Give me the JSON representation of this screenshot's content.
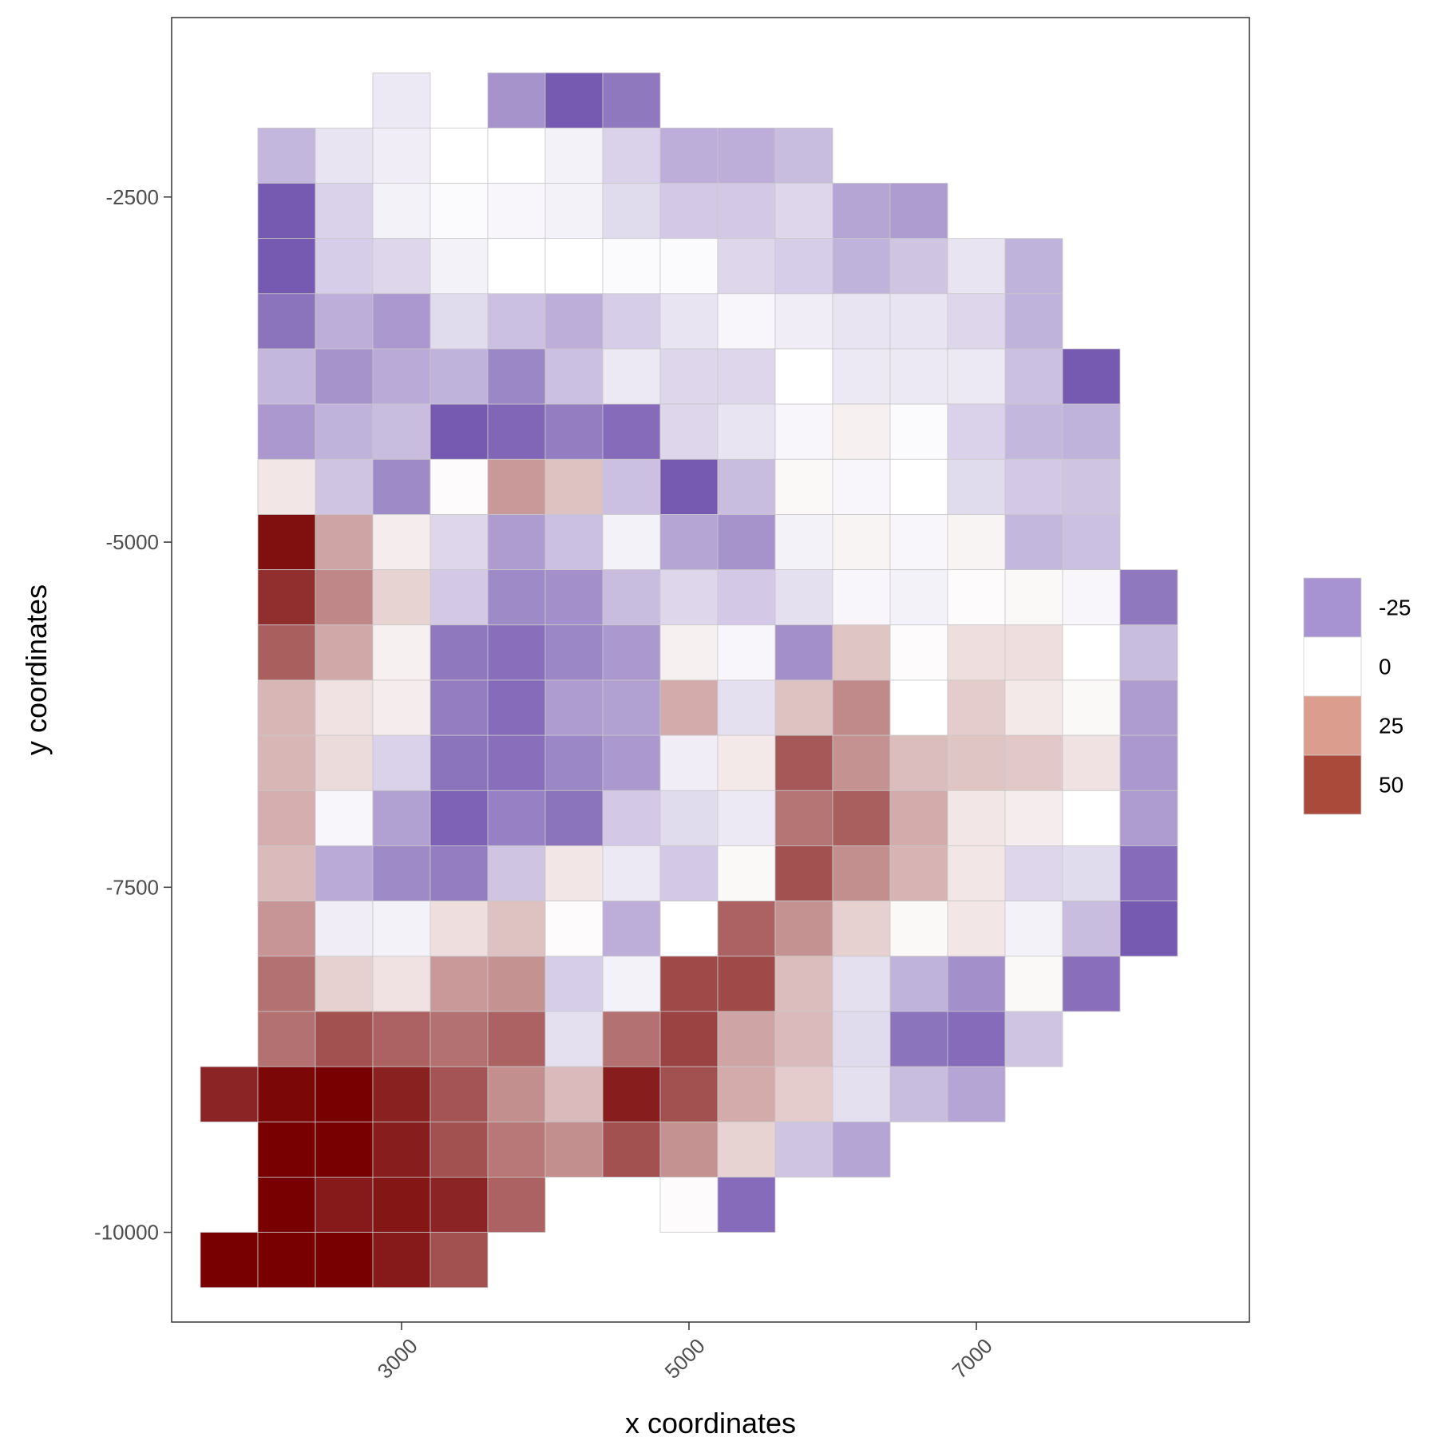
{
  "chart_data": {
    "type": "heatmap",
    "title": "",
    "xlabel": "x coordinates",
    "ylabel": "y coordinates",
    "xlim": [
      1400,
      8900
    ],
    "ylim": [
      -10650,
      -1200
    ],
    "x_ticks": [
      3000,
      5000,
      7000
    ],
    "x_tick_labels": [
      "3000",
      "5000",
      "7000"
    ],
    "y_ticks": [
      -2500,
      -5000,
      -7500,
      -10000
    ],
    "y_tick_labels": [
      "-2500",
      "-5000",
      "-7500",
      "-10000"
    ],
    "grid": false,
    "legend_position": "right",
    "legend": {
      "entries": [
        {
          "label": "-25",
          "value": -25,
          "color": "#a893d2"
        },
        {
          "label": "0",
          "value": 0,
          "color": "#ffffff"
        },
        {
          "label": "25",
          "value": 25,
          "color": "#da9d8e"
        },
        {
          "label": "50",
          "value": 50,
          "color": "#a94a3a"
        }
      ]
    },
    "color_scale": {
      "low": -40,
      "mid": 0,
      "high": 70,
      "low_color": "#6b4baa",
      "mid_color": "#ffffff",
      "high_color": "#780000"
    },
    "cell_x_step": 400,
    "cell_y_step": -400,
    "cell_x_start": 1800,
    "cell_y_start": -1800,
    "cell_values": [
      [
        null,
        null,
        null,
        -5,
        null,
        -24,
        -37,
        -30,
        null,
        null,
        null,
        null,
        null,
        null,
        null,
        null,
        null
      ],
      [
        null,
        -16,
        -6,
        -4,
        0,
        0,
        -3,
        -10,
        -18,
        -18,
        -15,
        null,
        null,
        null,
        null,
        null,
        null
      ],
      [
        null,
        -37,
        -10,
        -3,
        -1,
        -2,
        -3,
        -8,
        -12,
        -12,
        -9,
        -20,
        -22,
        null,
        null,
        null,
        null
      ],
      [
        null,
        -37,
        -11,
        -9,
        -3,
        0,
        0,
        -1,
        -1,
        -9,
        -11,
        -17,
        -13,
        -6,
        -17,
        null,
        null
      ],
      [
        null,
        -31,
        -18,
        -23,
        -8,
        -14,
        -18,
        -11,
        -6,
        -2,
        -4,
        -6,
        -6,
        -9,
        -17,
        null,
        null
      ],
      [
        null,
        -16,
        -24,
        -19,
        -17,
        -27,
        -14,
        -5,
        -9,
        -9,
        0,
        -5,
        -5,
        -5,
        -14,
        -37,
        null
      ],
      [
        null,
        -23,
        -17,
        -15,
        -37,
        -34,
        -29,
        -33,
        -9,
        -6,
        -2,
        4,
        -1,
        -10,
        -16,
        -17,
        null
      ],
      [
        null,
        7,
        -13,
        -26,
        1,
        28,
        17,
        -14,
        -37,
        -15,
        2,
        -2,
        0,
        -8,
        -12,
        -13,
        null
      ],
      [
        null,
        66,
        25,
        5,
        -9,
        -22,
        -14,
        -3,
        -20,
        -24,
        -3,
        3,
        -2,
        3,
        -16,
        -14,
        null
      ],
      [
        null,
        57,
        33,
        12,
        -12,
        -26,
        -25,
        -15,
        -9,
        -12,
        -7,
        -2,
        -3,
        1,
        2,
        -2,
        -30
      ],
      [
        null,
        44,
        24,
        4,
        -30,
        -32,
        -27,
        -23,
        4,
        -2,
        -25,
        16,
        1,
        9,
        9,
        0,
        -15
      ],
      [
        null,
        20,
        8,
        5,
        -29,
        -33,
        -22,
        -21,
        23,
        -7,
        17,
        32,
        0,
        14,
        6,
        2,
        -22
      ],
      [
        null,
        20,
        10,
        -10,
        -31,
        -32,
        -27,
        -23,
        -4,
        6,
        46,
        30,
        18,
        16,
        15,
        8,
        -23
      ],
      [
        null,
        22,
        -2,
        -21,
        -35,
        -28,
        -31,
        -12,
        -8,
        -5,
        38,
        44,
        23,
        7,
        5,
        0,
        -22
      ],
      [
        null,
        19,
        -19,
        -26,
        -29,
        -13,
        7,
        -5,
        -12,
        2,
        48,
        31,
        21,
        7,
        -9,
        -8,
        -33
      ],
      [
        null,
        29,
        -4,
        -3,
        9,
        17,
        1,
        -18,
        0,
        43,
        30,
        13,
        2,
        7,
        -3,
        -15,
        -37
      ],
      [
        null,
        39,
        13,
        8,
        28,
        30,
        -11,
        -3,
        50,
        50,
        18,
        -7,
        -17,
        -25,
        2,
        -32,
        null
      ],
      [
        null,
        39,
        48,
        43,
        39,
        43,
        -7,
        39,
        52,
        25,
        19,
        -8,
        -31,
        -33,
        -13,
        null,
        null
      ],
      [
        60,
        68,
        70,
        61,
        47,
        31,
        19,
        62,
        48,
        23,
        14,
        -7,
        -15,
        -20,
        null,
        null,
        null
      ],
      [
        null,
        70,
        70,
        62,
        48,
        37,
        31,
        48,
        30,
        12,
        -13,
        -20,
        null,
        null,
        null,
        null,
        null
      ],
      [
        null,
        70,
        63,
        64,
        60,
        43,
        null,
        null,
        1,
        -33,
        null,
        null,
        null,
        null,
        null,
        null,
        null
      ],
      [
        70,
        70,
        70,
        63,
        48,
        null,
        null,
        null,
        null,
        null,
        null,
        null,
        null,
        null,
        null,
        null,
        null
      ]
    ]
  }
}
